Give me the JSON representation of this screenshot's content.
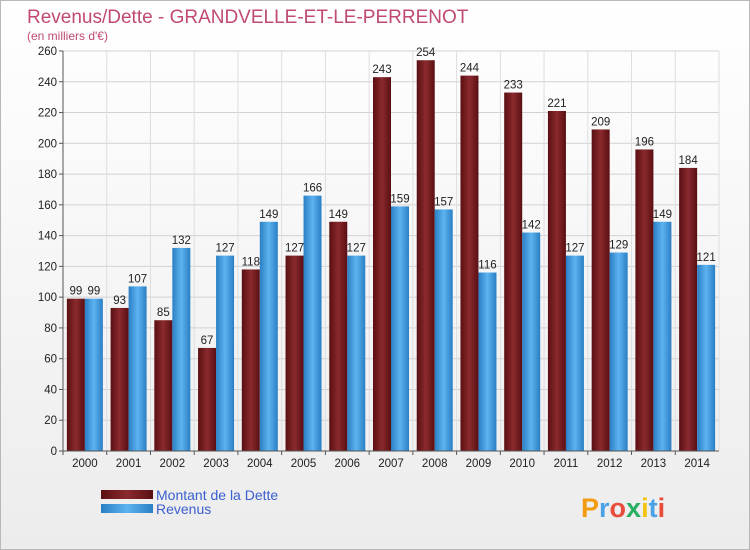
{
  "chart_data": {
    "type": "bar",
    "title": "Revenus/Dette - GRANDVELLE-ET-LE-PERRENOT",
    "subtitle": "(en milliers d'€)",
    "categories": [
      "2000",
      "2001",
      "2002",
      "2003",
      "2004",
      "2005",
      "2006",
      "2007",
      "2008",
      "2009",
      "2010",
      "2011",
      "2012",
      "2013",
      "2014"
    ],
    "series": [
      {
        "name": "Montant de la Dette",
        "color": "#7a1e22",
        "values": [
          99,
          93,
          85,
          67,
          118,
          127,
          149,
          243,
          254,
          244,
          233,
          221,
          209,
          196,
          184
        ]
      },
      {
        "name": "Revenus",
        "color": "#4aa3e6",
        "values": [
          99,
          107,
          132,
          127,
          149,
          166,
          127,
          159,
          157,
          116,
          142,
          127,
          129,
          149,
          121
        ]
      }
    ],
    "yticks": [
      0,
      20,
      40,
      60,
      80,
      100,
      120,
      140,
      160,
      180,
      200,
      220,
      240,
      260
    ],
    "ylim": [
      0,
      260
    ],
    "grid": true,
    "legend_position": "bottom-left"
  },
  "branding": {
    "logo_text": "Proxiti",
    "logo_letters": [
      "P",
      "r",
      "o",
      "x",
      "i",
      "t",
      "i"
    ],
    "logo_colors": [
      "#f39c12",
      "#4aa3e6",
      "#e74c3c",
      "#27ae60",
      "#f1c40f",
      "#4aa3e6",
      "#e74c3c"
    ]
  }
}
